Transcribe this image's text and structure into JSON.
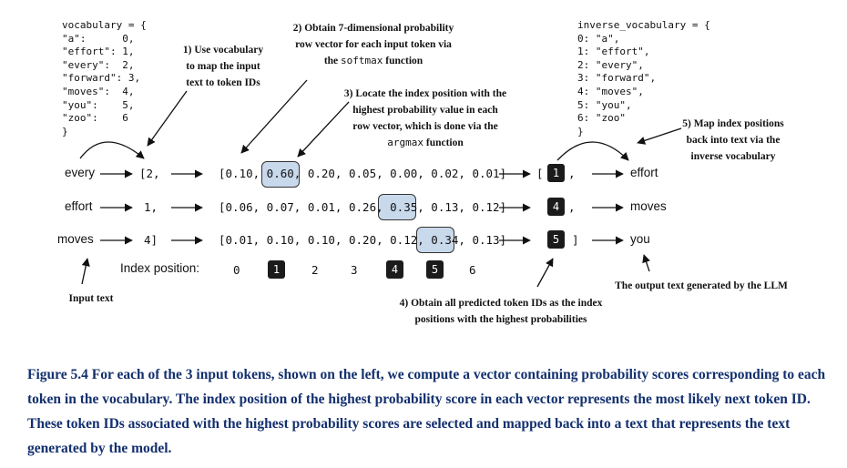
{
  "vocabulary": {
    "header": "vocabulary = {",
    "lines": [
      "\"a\":      0,",
      "\"effort\": 1,",
      "\"every\":  2,",
      "\"forward\": 3,",
      "\"moves\":  4,",
      "\"you\":    5,",
      "\"zoo\":    6"
    ],
    "footer": "}"
  },
  "inverse_vocabulary": {
    "header": "inverse_vocabulary = {",
    "lines": [
      "0: \"a\",",
      "1: \"effort\",",
      "2: \"every\",",
      "3: \"forward\",",
      "4: \"moves\",",
      "5: \"you\",",
      "6: \"zoo\""
    ],
    "footer": "}"
  },
  "steps": {
    "s1": {
      "line1": "1) Use vocabulary",
      "line2": "to map the input",
      "line3": "text to token IDs"
    },
    "s2": {
      "line1": "2) Obtain 7-dimensional probability",
      "line2": "row vector for each input token via",
      "line3_pre": "the ",
      "line3_code": "softmax",
      "line3_post": " function"
    },
    "s3": {
      "line1": "3) Locate the index position with the",
      "line2": "highest probability value in each",
      "line3": "row vector, which is done via the",
      "line4_code": "argmax",
      "line4_post": " function"
    },
    "s4": {
      "line1": "4) Obtain all predicted token IDs as the index",
      "line2": "positions with the highest probabilities"
    },
    "s5": {
      "line1": "5) Map index positions",
      "line2": "back into text via the",
      "line3": "inverse vocabulary"
    }
  },
  "rows": [
    {
      "word": "every",
      "id": "[2,",
      "vec": "[0.10, 0.60, 0.20, 0.05, 0.00, 0.02, 0.01]",
      "out_prefix": "[",
      "out_id": "1",
      "out_suffix": ",",
      "out_word": "effort"
    },
    {
      "word": "effort",
      "id": "1,",
      "vec": "[0.06, 0.07, 0.01, 0.26, 0.35, 0.13, 0.12]",
      "out_prefix": "",
      "out_id": "4",
      "out_suffix": ",",
      "out_word": "moves"
    },
    {
      "word": "moves",
      "id": "4]",
      "vec": "[0.01, 0.10, 0.10, 0.20, 0.12, 0.34, 0.13]",
      "out_prefix": "",
      "out_id": "5",
      "out_suffix": "]",
      "out_word": "you"
    }
  ],
  "highlights": [
    "0.60,",
    "0.35,",
    "0.34,"
  ],
  "index_position": {
    "label": "Index position:",
    "values": [
      "0",
      "1",
      "2",
      "3",
      "4",
      "5",
      "6"
    ],
    "highlighted": [
      "1",
      "4",
      "5"
    ]
  },
  "input_text_label": "Input text",
  "output_text_label": "The output text generated by the LLM",
  "caption": "Figure 5.4 For each of the 3 input tokens, shown on the left, we compute a vector containing probability scores corresponding to each token in the vocabulary. The index position of the highest probability score in each vector represents the most likely next token ID. These token IDs associated with the highest probability scores are selected and mapped back into a text that represents the text generated by the model.",
  "colors": {
    "highlight_fill": "#c9d9ec",
    "badge": "#1b1b1b",
    "caption": "#13306e"
  }
}
